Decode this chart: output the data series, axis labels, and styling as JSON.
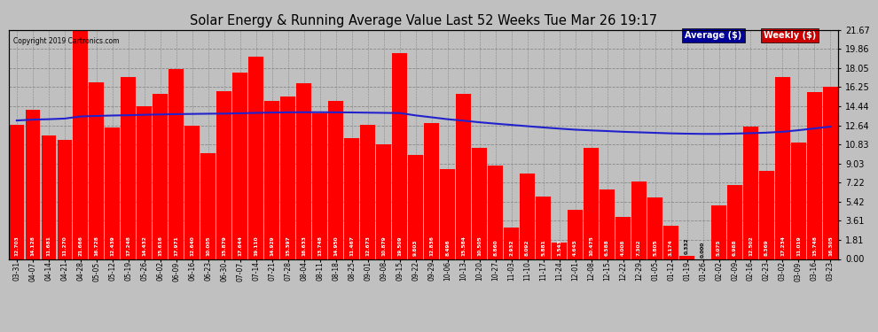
{
  "title": "Solar Energy & Running Average Value Last 52 Weeks Tue Mar 26 19:17",
  "copyright": "Copyright 2019 Cartronics.com",
  "bar_color": "#ff0000",
  "avg_line_color": "#2222cc",
  "background_color": "#c0c0c0",
  "plot_bg_color": "#c0c0c0",
  "grid_color": "#888888",
  "yticks": [
    0.0,
    1.81,
    3.61,
    5.42,
    7.22,
    9.03,
    10.83,
    12.64,
    14.44,
    16.25,
    18.05,
    19.86,
    21.67
  ],
  "categories": [
    "03-31",
    "04-07",
    "04-14",
    "04-21",
    "04-28",
    "05-05",
    "05-12",
    "05-19",
    "05-26",
    "06-02",
    "06-09",
    "06-16",
    "06-23",
    "06-30",
    "07-07",
    "07-14",
    "07-21",
    "07-28",
    "08-04",
    "08-11",
    "08-18",
    "08-25",
    "09-01",
    "09-08",
    "09-15",
    "09-22",
    "09-29",
    "10-06",
    "10-13",
    "10-20",
    "10-27",
    "11-03",
    "11-10",
    "11-17",
    "11-24",
    "12-01",
    "12-08",
    "12-15",
    "12-22",
    "12-29",
    "01-05",
    "01-12",
    "01-19",
    "01-26",
    "02-02",
    "02-09",
    "02-16",
    "02-23",
    "03-02",
    "03-09",
    "03-16",
    "03-23"
  ],
  "weekly_values": [
    12.703,
    14.128,
    11.681,
    11.27,
    21.666,
    16.728,
    12.439,
    17.248,
    14.432,
    15.616,
    17.971,
    12.64,
    10.005,
    15.879,
    17.644,
    19.11,
    14.929,
    15.397,
    16.633,
    13.748,
    14.95,
    11.467,
    12.673,
    10.879,
    19.509,
    9.803,
    12.836,
    8.496,
    15.584,
    10.505,
    8.86,
    2.932,
    8.092,
    5.881,
    1.543,
    4.645,
    10.475,
    6.588,
    4.008,
    7.302,
    5.805,
    3.174,
    0.332,
    0.0,
    5.075,
    6.988,
    12.502,
    8.369,
    17.234,
    11.019,
    15.748,
    16.305
  ],
  "avg_values": [
    13.1,
    13.18,
    13.22,
    13.28,
    13.48,
    13.53,
    13.57,
    13.6,
    13.64,
    13.67,
    13.7,
    13.72,
    13.74,
    13.75,
    13.78,
    13.82,
    13.85,
    13.87,
    13.88,
    13.88,
    13.87,
    13.86,
    13.84,
    13.82,
    13.8,
    13.58,
    13.4,
    13.22,
    13.08,
    12.93,
    12.8,
    12.68,
    12.56,
    12.44,
    12.33,
    12.23,
    12.16,
    12.1,
    12.03,
    11.98,
    11.93,
    11.88,
    11.85,
    11.83,
    11.83,
    11.86,
    11.9,
    11.95,
    12.03,
    12.18,
    12.35,
    12.52
  ],
  "legend_avg_bg": "#000099",
  "legend_weekly_bg": "#cc0000",
  "legend_avg_label": "Average ($)",
  "legend_weekly_label": "Weekly ($)"
}
